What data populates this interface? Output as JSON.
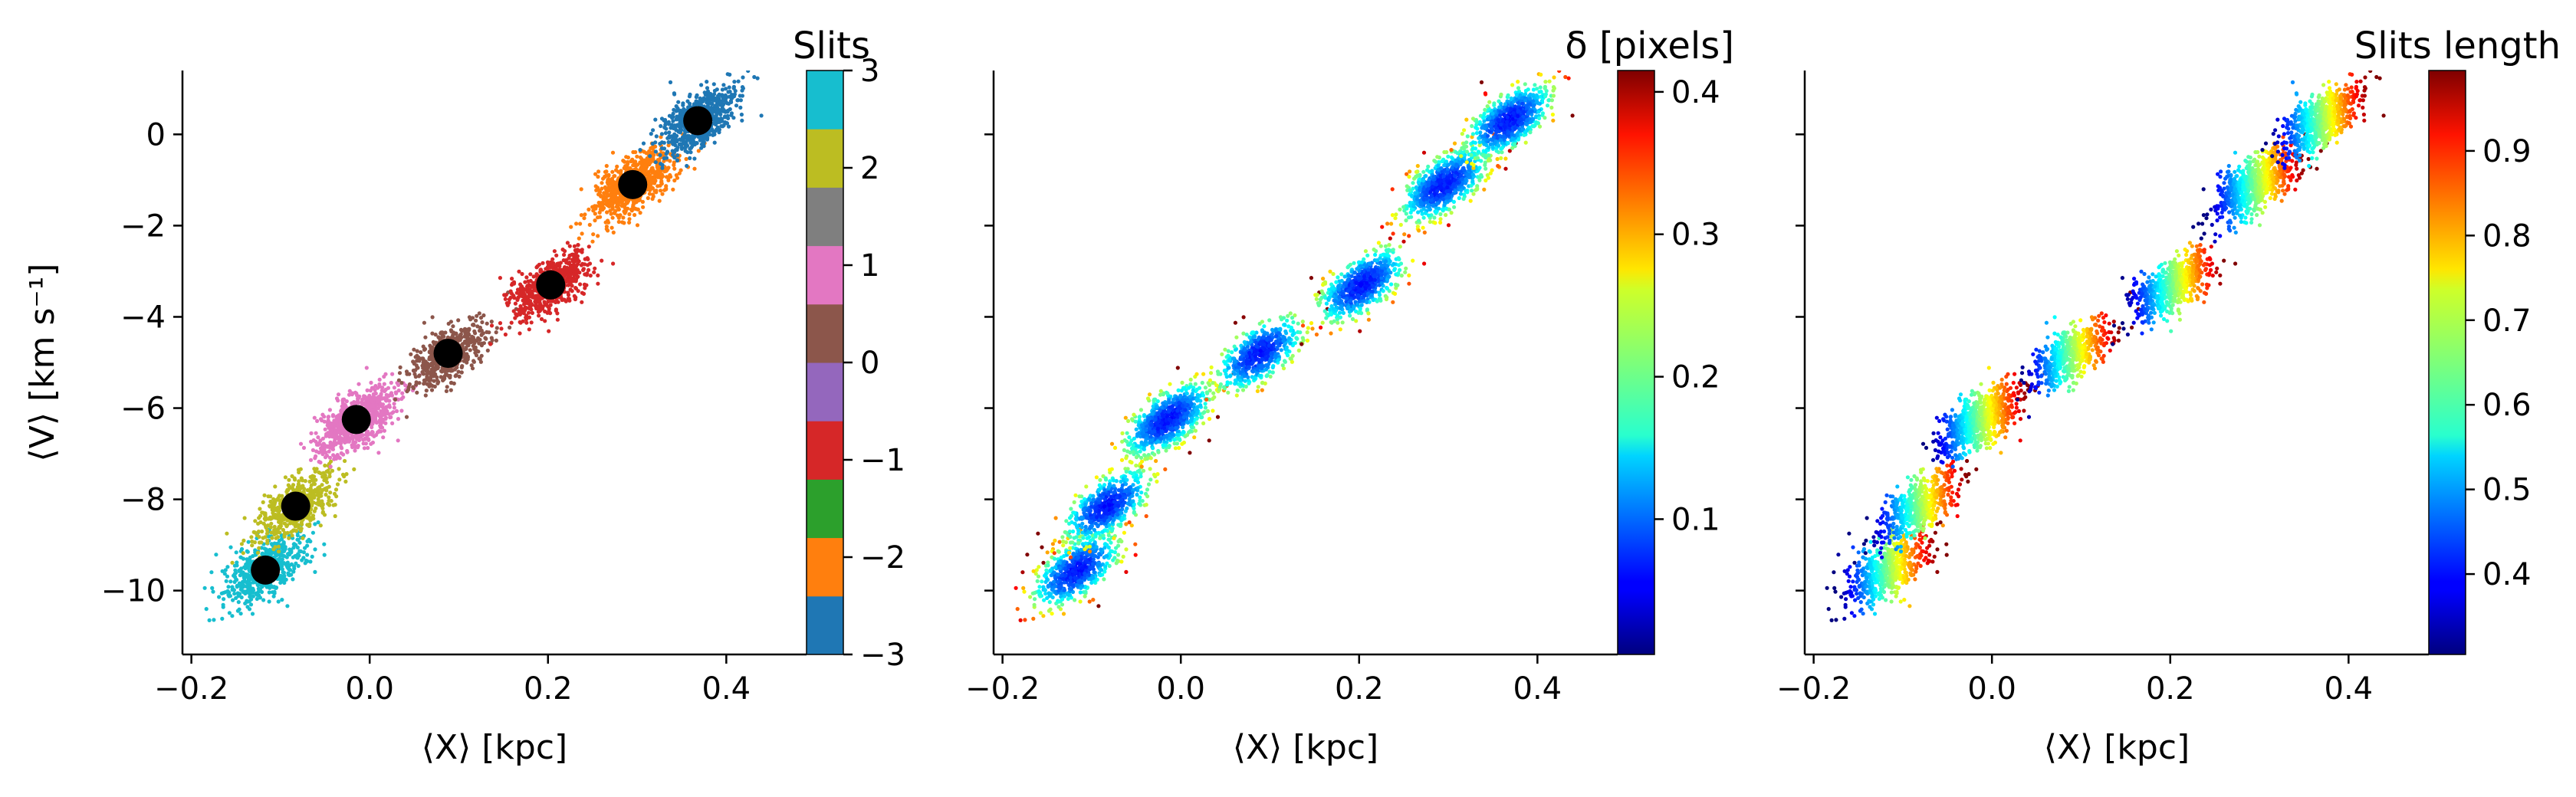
{
  "chart_data": [
    {
      "type": "scatter",
      "xlabel": "⟨X⟩ [kpc]",
      "ylabel": "⟨V⟩ [km s⁻¹]",
      "xlim": [
        -0.21,
        0.49
      ],
      "ylim": [
        -11.4,
        1.4
      ],
      "xticks": [
        -0.2,
        0.0,
        0.2,
        0.4
      ],
      "xtick_labels": [
        "−0.2",
        "0.0",
        "0.2",
        "0.4"
      ],
      "yticks": [
        0,
        -2,
        -4,
        -6,
        -8,
        -10
      ],
      "ytick_labels": [
        "0",
        "−2",
        "−4",
        "−6",
        "−8",
        "−10"
      ],
      "color_by": "slit",
      "colorbar": {
        "title": "Slits",
        "type": "discrete",
        "range": [
          -3,
          3
        ],
        "ticks": [
          3,
          2,
          1,
          0,
          -1,
          -2,
          -3
        ],
        "tick_labels": [
          "3",
          "2",
          "1",
          "0",
          "−1",
          "−2",
          "−3"
        ],
        "colors_bottom_to_top": [
          "#1f77b4",
          "#ff7f0e",
          "#2ca02c",
          "#d62728",
          "#9467bd",
          "#8c564b",
          "#e377c2",
          "#7f7f7f",
          "#bcbd22",
          "#17becf"
        ]
      },
      "series": [
        {
          "x": -0.117,
          "y": -9.55,
          "color": "#17becf",
          "count": 600
        },
        {
          "x": -0.083,
          "y": -8.15,
          "color": "#bcbd22",
          "count": 550
        },
        {
          "x": -0.015,
          "y": -6.25,
          "color": "#e377c2",
          "count": 800
        },
        {
          "x": 0.088,
          "y": -4.8,
          "color": "#8c564b",
          "count": 550
        },
        {
          "x": 0.203,
          "y": -3.3,
          "color": "#d62728",
          "count": 650
        },
        {
          "x": 0.295,
          "y": -1.1,
          "color": "#ff7f0e",
          "count": 750
        },
        {
          "x": 0.368,
          "y": 0.3,
          "color": "#1f77b4",
          "count": 700
        }
      ],
      "centroids": [
        {
          "x": -0.117,
          "y": -9.55
        },
        {
          "x": -0.083,
          "y": -8.15
        },
        {
          "x": -0.015,
          "y": -6.25
        },
        {
          "x": 0.088,
          "y": -4.8
        },
        {
          "x": 0.203,
          "y": -3.3
        },
        {
          "x": 0.295,
          "y": -1.1
        },
        {
          "x": 0.368,
          "y": 0.3
        }
      ]
    },
    {
      "type": "scatter",
      "xlabel": "⟨X⟩ [kpc]",
      "xlim": [
        -0.21,
        0.49
      ],
      "ylim": [
        -11.4,
        1.4
      ],
      "xticks": [
        -0.2,
        0.0,
        0.2,
        0.4
      ],
      "xtick_labels": [
        "−0.2",
        "0.0",
        "0.2",
        "0.4"
      ],
      "yticks": [
        0,
        -2,
        -4,
        -6,
        -8,
        -10
      ],
      "color_by": "delta",
      "colorbar": {
        "title": "δ [pixels]",
        "colormap": "jet",
        "range": [
          0.005,
          0.415
        ],
        "ticks": [
          0.1,
          0.2,
          0.3,
          0.4
        ],
        "tick_labels": [
          "0.1",
          "0.2",
          "0.3",
          "0.4"
        ]
      }
    },
    {
      "type": "scatter",
      "xlabel": "⟨X⟩ [kpc]",
      "xlim": [
        -0.21,
        0.49
      ],
      "ylim": [
        -11.4,
        1.4
      ],
      "xticks": [
        -0.2,
        0.0,
        0.2,
        0.4
      ],
      "xtick_labels": [
        "−0.2",
        "0.0",
        "0.2",
        "0.4"
      ],
      "yticks": [
        0,
        -2,
        -4,
        -6,
        -8,
        -10
      ],
      "color_by": "slit_length",
      "colorbar": {
        "title": "Slits length",
        "colormap": "jet",
        "range": [
          0.305,
          0.995
        ],
        "ticks": [
          0.4,
          0.5,
          0.6,
          0.7,
          0.8,
          0.9
        ],
        "tick_labels": [
          "0.4",
          "0.5",
          "0.6",
          "0.7",
          "0.8",
          "0.9"
        ]
      }
    }
  ]
}
